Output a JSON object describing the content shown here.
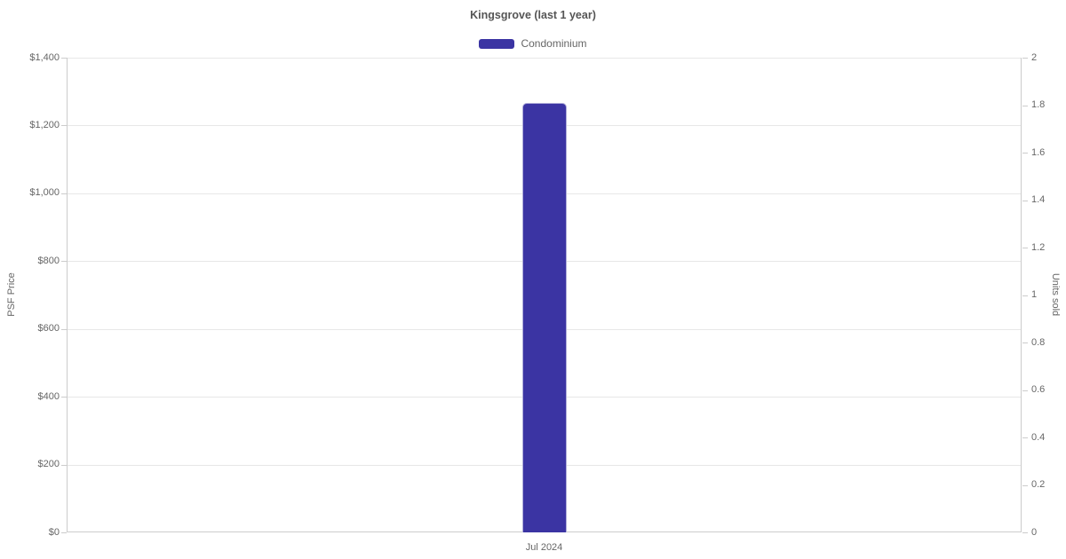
{
  "colors": {
    "bar": "#3b34a3",
    "grid": "#e7e7e7",
    "axis_line": "#cccccc",
    "tick_text": "#666666",
    "title_text": "#555555",
    "background": "#ffffff"
  },
  "chart_data": {
    "type": "bar",
    "title": "Kingsgrove (last 1 year)",
    "categories": [
      "Jul 2024"
    ],
    "series": [
      {
        "name": "Condominium",
        "axis": "left",
        "color": "#3b34a3",
        "values": [
          1266
        ]
      }
    ],
    "y_left": {
      "label": "PSF Price",
      "min": 0,
      "max": 1400,
      "tick_step": 200,
      "tick_labels": [
        "$0",
        "$200",
        "$400",
        "$600",
        "$800",
        "$1,000",
        "$1,200",
        "$1,400"
      ]
    },
    "y_right": {
      "label": "Units sold",
      "min": 0,
      "max": 2,
      "tick_step": 0.2,
      "tick_labels": [
        "0",
        "0.2",
        "0.4",
        "0.6",
        "0.8",
        "1",
        "1.2",
        "1.4",
        "1.6",
        "1.8",
        "2"
      ]
    },
    "x_axis": {
      "tick_labels": [
        "Jul 2024"
      ]
    },
    "grid": "horizontal-from-left-axis-only",
    "legend_position": "top-center"
  }
}
